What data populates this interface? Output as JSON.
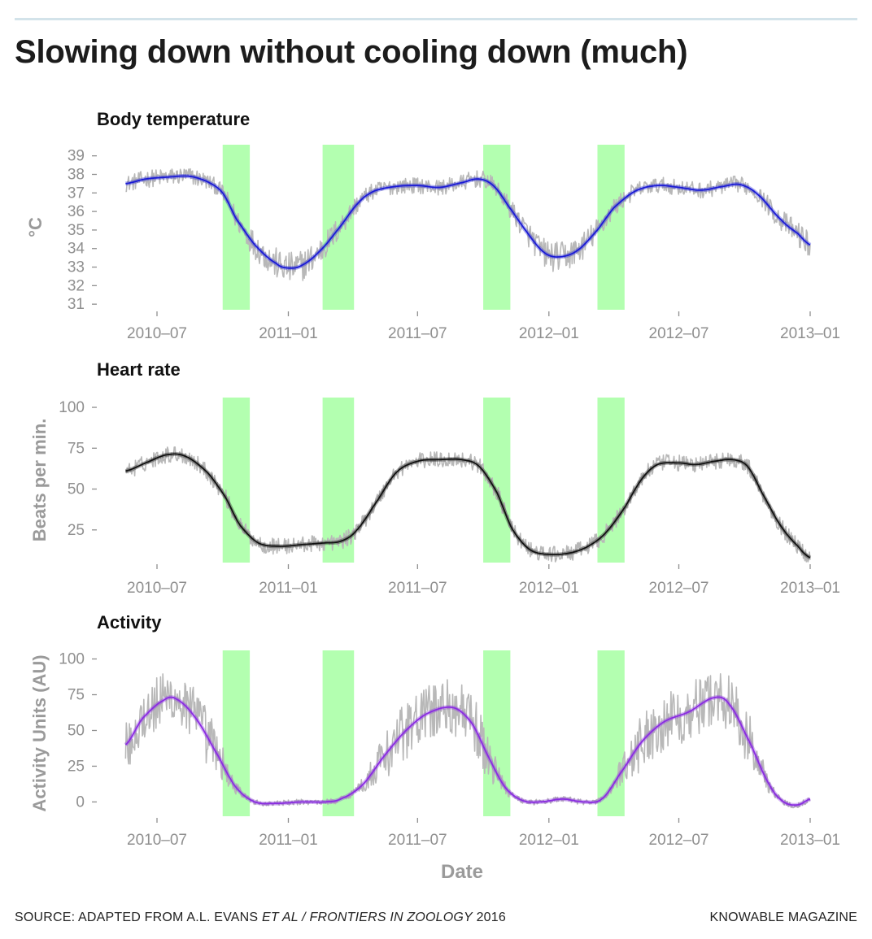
{
  "title": "Slowing down without cooling down (much)",
  "source": {
    "prefix": "SOURCE: ADAPTED FROM A.L. EVANS ",
    "italic": "ET AL / FRONTIERS IN ZOOLOGY",
    "suffix": " 2016"
  },
  "credit": "KNOWABLE MAGAZINE",
  "chart_data": {
    "type": "line",
    "xlabel": "Date",
    "x_ticks": [
      "2010–07",
      "2011–01",
      "2011–07",
      "2012–01",
      "2012–07",
      "2013–01"
    ],
    "x_tick_dates": [
      "2010-07-01",
      "2011-01-01",
      "2011-07-01",
      "2012-01-01",
      "2012-07-01",
      "2013-01-01"
    ],
    "green_bands": [
      [
        "2010-10-01",
        "2010-11-08"
      ],
      [
        "2011-02-18",
        "2011-04-03"
      ],
      [
        "2011-10-01",
        "2011-11-08"
      ],
      [
        "2012-03-09",
        "2012-04-16"
      ]
    ],
    "colors": {
      "raw": "#b8b8b8",
      "band": "#b3ffb0",
      "temperature": "#1a1ad6",
      "heart": "#111111",
      "activity": "#8a2be2",
      "tick": "#8f8f8f"
    },
    "panels": [
      {
        "title": "Body temperature",
        "ylabel": "°C",
        "ylim": [
          30.7,
          39.6
        ],
        "y_ticks": [
          31,
          32,
          33,
          34,
          35,
          36,
          37,
          38,
          39
        ],
        "line_color": "#1a1ad6",
        "raw_noise": 0.7,
        "smooth": [
          [
            "2010-05-18",
            37.5
          ],
          [
            "2010-06-15",
            37.75
          ],
          [
            "2010-07-15",
            37.85
          ],
          [
            "2010-08-15",
            37.9
          ],
          [
            "2010-09-10",
            37.6
          ],
          [
            "2010-10-01",
            37.0
          ],
          [
            "2010-10-20",
            35.6
          ],
          [
            "2010-11-15",
            34.2
          ],
          [
            "2010-12-15",
            33.2
          ],
          [
            "2011-01-01",
            32.95
          ],
          [
            "2011-01-20",
            33.1
          ],
          [
            "2011-02-15",
            33.9
          ],
          [
            "2011-03-15",
            35.2
          ],
          [
            "2011-04-10",
            36.5
          ],
          [
            "2011-05-01",
            37.1
          ],
          [
            "2011-06-01",
            37.35
          ],
          [
            "2011-07-01",
            37.4
          ],
          [
            "2011-08-01",
            37.3
          ],
          [
            "2011-09-01",
            37.55
          ],
          [
            "2011-09-25",
            37.75
          ],
          [
            "2011-10-15",
            37.4
          ],
          [
            "2011-11-05",
            36.3
          ],
          [
            "2011-12-01",
            34.9
          ],
          [
            "2011-12-25",
            33.8
          ],
          [
            "2012-01-15",
            33.55
          ],
          [
            "2012-02-10",
            33.9
          ],
          [
            "2012-03-09",
            35.0
          ],
          [
            "2012-04-01",
            36.2
          ],
          [
            "2012-05-01",
            37.1
          ],
          [
            "2012-06-01",
            37.4
          ],
          [
            "2012-07-01",
            37.3
          ],
          [
            "2012-08-01",
            37.15
          ],
          [
            "2012-09-01",
            37.35
          ],
          [
            "2012-09-25",
            37.45
          ],
          [
            "2012-10-20",
            36.9
          ],
          [
            "2012-11-20",
            35.6
          ],
          [
            "2012-12-15",
            34.8
          ],
          [
            "2013-01-01",
            34.2
          ]
        ]
      },
      {
        "title": "Heart rate",
        "ylabel": "Beats per min.",
        "ylim": [
          5,
          106
        ],
        "y_ticks": [
          25,
          50,
          75,
          100
        ],
        "line_color": "#111111",
        "raw_noise": 5,
        "smooth": [
          [
            "2010-05-18",
            61
          ],
          [
            "2010-06-15",
            66
          ],
          [
            "2010-07-15",
            71
          ],
          [
            "2010-08-10",
            70
          ],
          [
            "2010-09-10",
            60
          ],
          [
            "2010-10-05",
            45
          ],
          [
            "2010-10-25",
            28
          ],
          [
            "2010-11-20",
            17
          ],
          [
            "2010-12-20",
            15
          ],
          [
            "2011-01-20",
            16
          ],
          [
            "2011-02-20",
            17
          ],
          [
            "2011-03-15",
            18
          ],
          [
            "2011-04-05",
            24
          ],
          [
            "2011-05-01",
            40
          ],
          [
            "2011-06-01",
            60
          ],
          [
            "2011-07-01",
            67
          ],
          [
            "2011-08-01",
            68
          ],
          [
            "2011-09-01",
            68
          ],
          [
            "2011-09-25",
            64
          ],
          [
            "2011-10-20",
            48
          ],
          [
            "2011-11-10",
            26
          ],
          [
            "2011-12-05",
            13
          ],
          [
            "2012-01-01",
            10
          ],
          [
            "2012-02-01",
            11
          ],
          [
            "2012-02-25",
            15
          ],
          [
            "2012-03-20",
            23
          ],
          [
            "2012-04-15",
            38
          ],
          [
            "2012-05-10",
            56
          ],
          [
            "2012-06-01",
            65
          ],
          [
            "2012-07-01",
            66
          ],
          [
            "2012-07-25",
            65
          ],
          [
            "2012-08-20",
            67
          ],
          [
            "2012-09-15",
            68
          ],
          [
            "2012-10-05",
            64
          ],
          [
            "2012-10-25",
            48
          ],
          [
            "2012-11-20",
            28
          ],
          [
            "2012-12-15",
            15
          ],
          [
            "2013-01-01",
            8
          ]
        ]
      },
      {
        "title": "Activity",
        "ylabel": "Activity Units (AU)",
        "ylim": [
          -10,
          106
        ],
        "y_ticks": [
          0,
          25,
          50,
          75,
          100
        ],
        "line_color": "#8a2be2",
        "raw_noise": 20,
        "smooth": [
          [
            "2010-05-18",
            40
          ],
          [
            "2010-06-10",
            58
          ],
          [
            "2010-07-10",
            71
          ],
          [
            "2010-07-28",
            72
          ],
          [
            "2010-08-25",
            58
          ],
          [
            "2010-09-25",
            32
          ],
          [
            "2010-10-20",
            10
          ],
          [
            "2010-11-15",
            0
          ],
          [
            "2010-12-15",
            -1
          ],
          [
            "2011-01-20",
            0
          ],
          [
            "2011-02-20",
            0
          ],
          [
            "2011-03-15",
            2
          ],
          [
            "2011-04-15",
            12
          ],
          [
            "2011-05-15",
            32
          ],
          [
            "2011-06-15",
            50
          ],
          [
            "2011-07-15",
            62
          ],
          [
            "2011-08-20",
            66
          ],
          [
            "2011-09-15",
            55
          ],
          [
            "2011-10-10",
            30
          ],
          [
            "2011-11-01",
            10
          ],
          [
            "2011-11-25",
            1
          ],
          [
            "2011-12-20",
            0
          ],
          [
            "2012-01-20",
            2
          ],
          [
            "2012-02-20",
            0
          ],
          [
            "2012-03-15",
            2
          ],
          [
            "2012-04-10",
            20
          ],
          [
            "2012-05-10",
            42
          ],
          [
            "2012-06-10",
            56
          ],
          [
            "2012-07-15",
            63
          ],
          [
            "2012-08-20",
            73
          ],
          [
            "2012-09-10",
            68
          ],
          [
            "2012-10-10",
            40
          ],
          [
            "2012-11-05",
            12
          ],
          [
            "2012-11-25",
            0
          ],
          [
            "2012-12-15",
            -2
          ],
          [
            "2013-01-01",
            2
          ]
        ]
      }
    ]
  }
}
